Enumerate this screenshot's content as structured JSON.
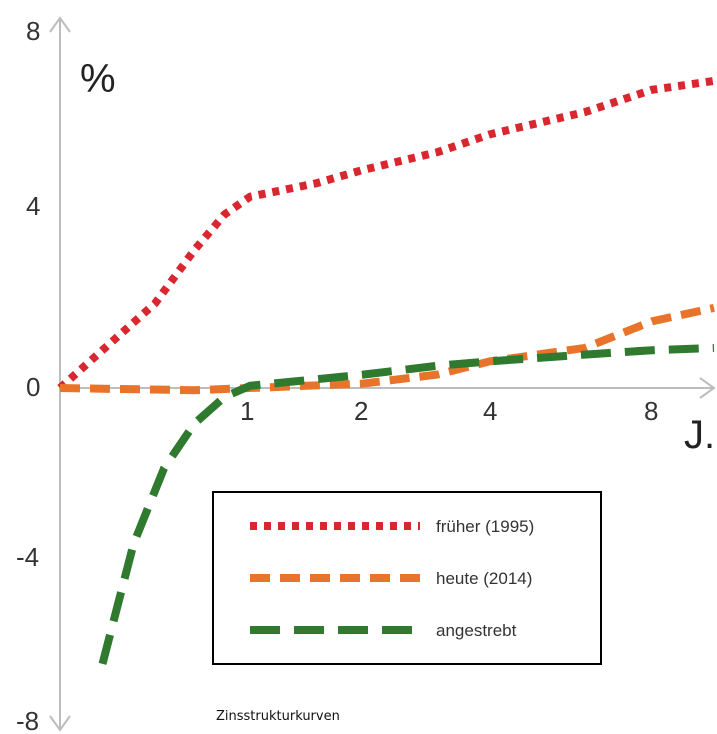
{
  "chart_data": {
    "type": "line",
    "title": "",
    "caption": "Zinsstrukturkurven",
    "ylabel": "%",
    "xlabel": "J.",
    "ylim": [
      -8,
      8
    ],
    "y_ticks": [
      "8",
      "4",
      "0",
      "-4",
      "-8"
    ],
    "x_ticks": [
      "1",
      "2",
      "4",
      "8"
    ],
    "x_scale": "log2 from 0 to about 9",
    "legend_position": "lower-right",
    "series": [
      {
        "name": "früher (1995)",
        "style": "dotted",
        "color": "#d9262f",
        "x": [
          0,
          0.25,
          0.5,
          0.75,
          1,
          1.5,
          2,
          3,
          4,
          6,
          8,
          9
        ],
        "y": [
          0.0,
          1.9,
          3.1,
          3.9,
          4.3,
          4.6,
          4.9,
          5.3,
          5.7,
          6.2,
          6.7,
          6.9
        ]
      },
      {
        "name": "heute (2014)",
        "style": "dashed",
        "color": "#e8742b",
        "x": [
          0,
          0.5,
          1,
          2,
          3,
          4,
          6,
          8,
          9
        ],
        "y": [
          0.0,
          -0.05,
          0.0,
          0.1,
          0.3,
          0.6,
          0.9,
          1.5,
          1.8
        ]
      },
      {
        "name": "angestrebt",
        "style": "long-dashed",
        "color": "#2f7a2f",
        "x": [
          0.05,
          0.15,
          0.3,
          0.5,
          0.75,
          1,
          2,
          3,
          4,
          6,
          8,
          9
        ],
        "y": [
          -6.2,
          -3.5,
          -1.8,
          -0.8,
          -0.2,
          0.05,
          0.3,
          0.5,
          0.6,
          0.75,
          0.85,
          0.9
        ]
      }
    ]
  }
}
